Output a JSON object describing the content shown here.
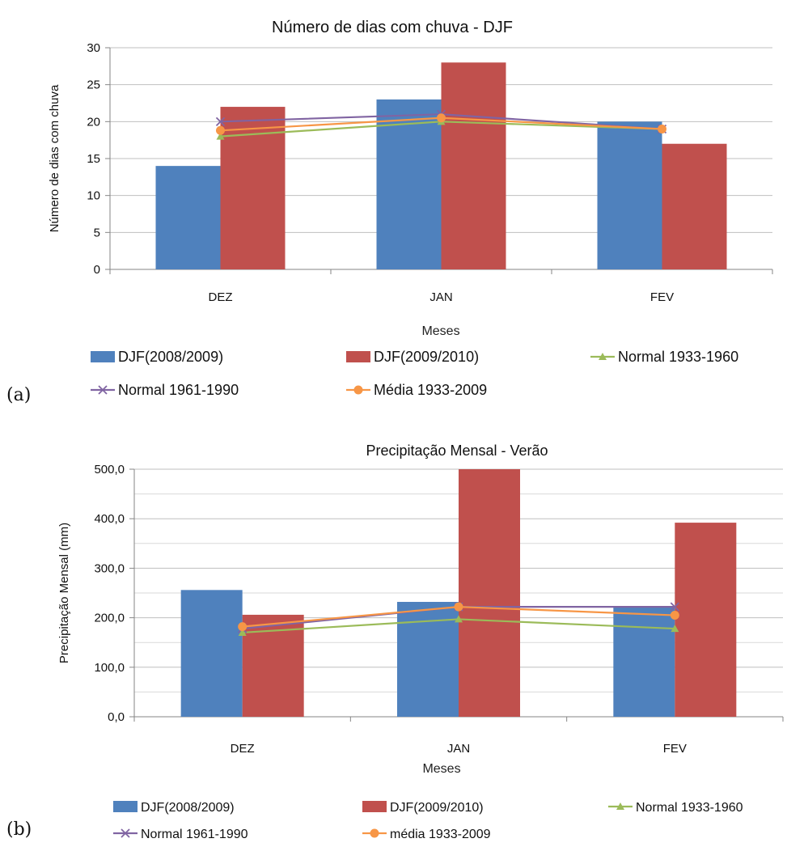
{
  "panel_tags": [
    "(a)",
    "(b)"
  ],
  "colors": {
    "series_2008_2009": "#4f81bd",
    "series_2009_2010": "#c0504d",
    "normal_1933_1960": "#9bbb59",
    "normal_1961_1990": "#8064a2",
    "media_1933_2009": "#f79646",
    "gridline": "#bfbfbf",
    "axis": "#868686"
  },
  "chart_data": [
    {
      "type": "bar",
      "title": "Número de dias com chuva - DJF",
      "xlabel": "Meses",
      "ylabel": "Número de dias com chuva",
      "categories": [
        "DEZ",
        "JAN",
        "FEV"
      ],
      "ylim": [
        0,
        30
      ],
      "yticks": [
        "0",
        "5",
        "10",
        "15",
        "20",
        "25",
        "30"
      ],
      "ytick_values": [
        0,
        5,
        10,
        15,
        20,
        25,
        30
      ],
      "grid": true,
      "legend_position": "bottom",
      "series": [
        {
          "name": "DJF(2008/2009)",
          "kind": "bar",
          "color": "#4f81bd",
          "values": [
            14,
            23,
            20
          ]
        },
        {
          "name": "DJF(2009/2010)",
          "kind": "bar",
          "color": "#c0504d",
          "values": [
            22,
            28,
            17
          ]
        },
        {
          "name": "Normal 1933-1960",
          "kind": "line",
          "marker": "triangle",
          "color": "#9bbb59",
          "values": [
            18,
            20,
            19
          ]
        },
        {
          "name": "Normal 1961-1990",
          "kind": "line",
          "marker": "cross",
          "color": "#8064a2",
          "values": [
            20,
            21,
            19
          ]
        },
        {
          "name": "Média 1933-2009",
          "kind": "line",
          "marker": "circle",
          "color": "#f79646",
          "values": [
            18.8,
            20.5,
            19
          ]
        }
      ]
    },
    {
      "type": "bar",
      "title": "Precipitação Mensal - Verão",
      "xlabel": "Meses",
      "ylabel": "Precipitação Mensal (mm)",
      "categories": [
        "DEZ",
        "JAN",
        "FEV"
      ],
      "ylim": [
        0,
        500
      ],
      "yticks": [
        "0,0",
        "100,0",
        "200,0",
        "300,0",
        "400,0",
        "500,0"
      ],
      "ytick_values": [
        0,
        100,
        200,
        300,
        400,
        500
      ],
      "grid": true,
      "legend_position": "bottom",
      "series": [
        {
          "name": "DJF(2008/2009)",
          "kind": "bar",
          "color": "#4f81bd",
          "values": [
            256,
            232,
            223
          ]
        },
        {
          "name": "DJF(2009/2010)",
          "kind": "bar",
          "color": "#c0504d",
          "values": [
            206,
            500,
            392
          ]
        },
        {
          "name": "Normal 1933-1960",
          "kind": "line",
          "marker": "triangle",
          "color": "#9bbb59",
          "values": [
            170,
            197,
            178
          ]
        },
        {
          "name": "Normal 1961-1990",
          "kind": "line",
          "marker": "cross",
          "color": "#8064a2",
          "values": [
            178,
            222,
            222
          ]
        },
        {
          "name": "média 1933-2009",
          "kind": "line",
          "marker": "circle",
          "color": "#f79646",
          "values": [
            182,
            222,
            205
          ]
        }
      ]
    }
  ]
}
